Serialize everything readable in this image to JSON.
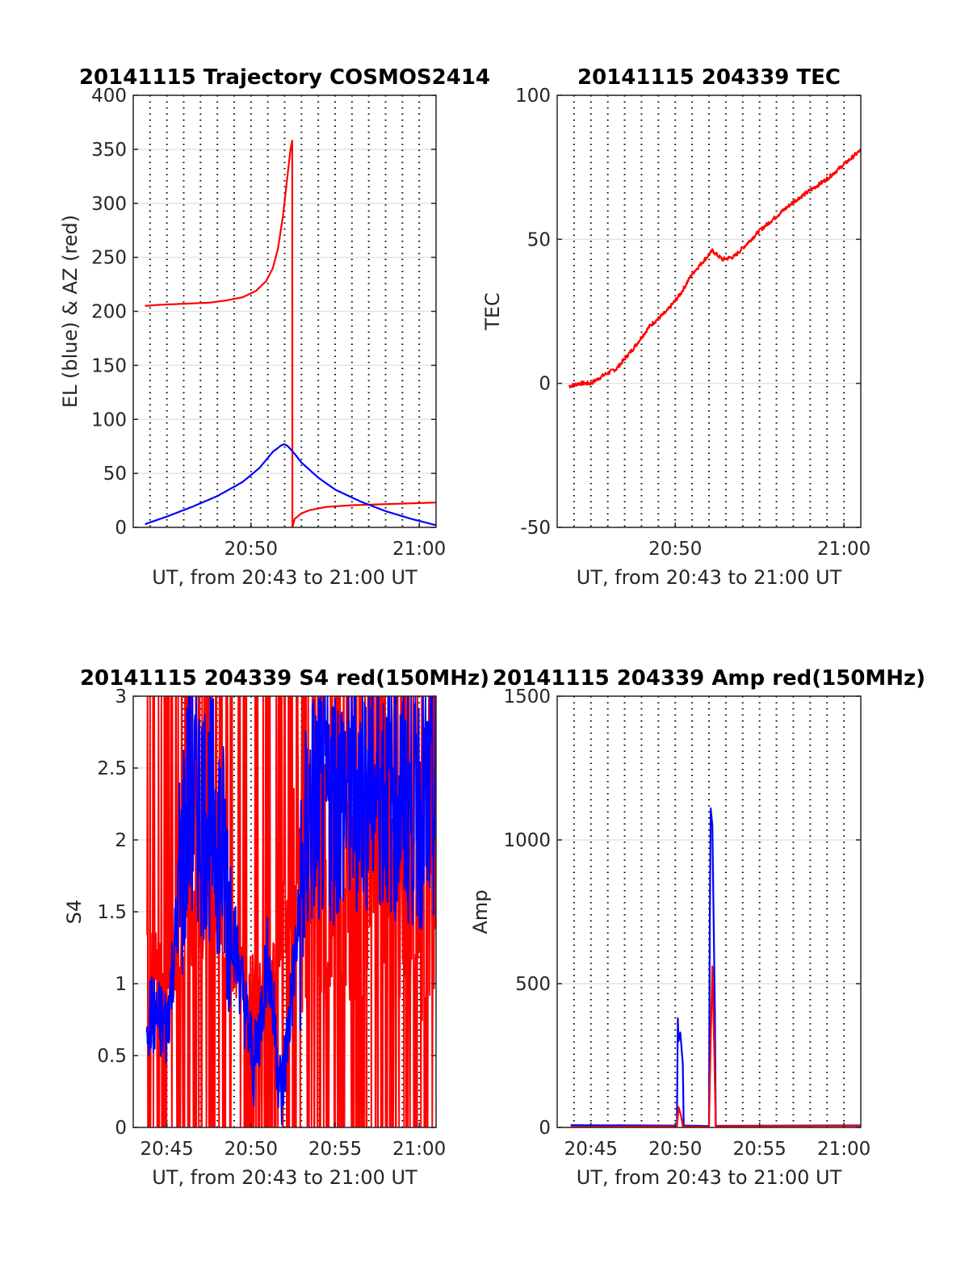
{
  "chart_data": [
    {
      "type": "line",
      "title": "20141115 Trajectory COSMOS2414",
      "xlabel": "UT, from 20:43 to 21:00 UT",
      "ylabel": "EL (blue) & AZ (red)",
      "xlim_minutes": [
        43,
        61
      ],
      "ylim": [
        0,
        400
      ],
      "xticks": [
        "20:50",
        "21:00"
      ],
      "yticks": [
        "0",
        "50",
        "100",
        "150",
        "200",
        "250",
        "300",
        "350",
        "400"
      ],
      "grid": "dotted vertical every 1 min, light horizontal",
      "series": [
        {
          "color": "#ff0000",
          "x": [
            43.7,
            44.5,
            46,
            47.5,
            48.5,
            49.5,
            50.3,
            50.9,
            51.3,
            51.6,
            51.9,
            52.2,
            52.35,
            52.45,
            52.46,
            52.6,
            53,
            53.5,
            54.5,
            56,
            58,
            61
          ],
          "y": [
            205,
            206,
            207,
            208,
            210,
            213,
            219,
            228,
            240,
            258,
            288,
            330,
            350,
            358,
            0,
            8,
            13,
            16,
            19,
            20.5,
            21.5,
            23
          ]
        },
        {
          "color": "#0000ff",
          "x": [
            43.7,
            45,
            46.5,
            48,
            49.5,
            50.5,
            51.3,
            51.8,
            52,
            52.2,
            52.6,
            53,
            54,
            55,
            56.5,
            58,
            59.5,
            61
          ],
          "y": [
            3,
            10,
            19,
            29,
            42,
            55,
            70,
            76,
            77,
            75,
            68,
            60,
            46,
            35,
            24,
            15,
            8,
            2
          ]
        }
      ]
    },
    {
      "type": "line",
      "title": "20141115 204339 TEC",
      "xlabel": "UT, from 20:43 to 21:00 UT",
      "ylabel": "TEC",
      "xlim_minutes": [
        43,
        61
      ],
      "ylim": [
        -50,
        100
      ],
      "xticks": [
        "20:50",
        "21:00"
      ],
      "yticks": [
        "-50",
        "0",
        "50",
        "100"
      ],
      "grid": "dotted vertical every 1 min, light horizontal",
      "series": [
        {
          "color": "#ff0000",
          "x": [
            43.7,
            44.3,
            45,
            45.8,
            46.5,
            47.5,
            48.5,
            49.5,
            50.3,
            51,
            51.6,
            52.2,
            52.8,
            53.5,
            54,
            55,
            56,
            57,
            58,
            59,
            60,
            61
          ],
          "y": [
            -1,
            0,
            0,
            3,
            5,
            12,
            20,
            25,
            31,
            38,
            42,
            46,
            43,
            44,
            47,
            53,
            58,
            63,
            67,
            71,
            76,
            81
          ]
        }
      ]
    },
    {
      "type": "line",
      "title": "20141115 204339 S4 red(150MHz)",
      "xlabel": "UT, from 20:43 to 21:00 UT",
      "ylabel": "S4",
      "xlim_minutes": [
        43,
        61
      ],
      "ylim": [
        0,
        3
      ],
      "xticks": [
        "20:45",
        "20:50",
        "20:55",
        "21:00"
      ],
      "yticks": [
        "0",
        "0.5",
        "1",
        "1.5",
        "2",
        "2.5",
        "3"
      ],
      "grid": "dotted vertical every 1 min, light horizontal",
      "series": [
        {
          "color": "#ff0000",
          "x": [
            43.8,
            45,
            46.3,
            48,
            50.2,
            51,
            51.8,
            53.5,
            55,
            57,
            61
          ],
          "y": [
            1.2,
            1.0,
            1.4,
            1.5,
            0.9,
            1.0,
            1.4,
            1.7,
            1.6,
            1.8,
            1.6
          ]
        },
        {
          "color": "#0000ff",
          "x": [
            43.8,
            45,
            46.3,
            48,
            50.2,
            51,
            51.8,
            53.5,
            55,
            57,
            61
          ],
          "y": [
            0.8,
            0.7,
            2.3,
            2.1,
            0.4,
            1.2,
            0.2,
            2.2,
            2.3,
            2.4,
            2.2
          ]
        }
      ]
    },
    {
      "type": "line",
      "title": "20141115 204339 Amp red(150MHz)",
      "xlabel": "UT, from 20:43 to 21:00 UT",
      "ylabel": "Amp",
      "xlim_minutes": [
        43,
        61
      ],
      "ylim": [
        0,
        1500
      ],
      "xticks": [
        "20:45",
        "20:50",
        "20:55",
        "21:00"
      ],
      "yticks": [
        "0",
        "500",
        "1000",
        "1500"
      ],
      "grid": "dotted vertical every 1 min, light horizontal",
      "series": [
        {
          "color": "#0000ff",
          "x": [
            43.8,
            50.1,
            50.15,
            50.2,
            50.3,
            50.45,
            50.5,
            52,
            52.05,
            52.1,
            52.2,
            52.35,
            52.4,
            61
          ],
          "y": [
            5,
            5,
            380,
            300,
            330,
            220,
            5,
            5,
            700,
            1110,
            1050,
            400,
            5,
            5
          ]
        },
        {
          "color": "#ff0000",
          "x": [
            43.8,
            50.1,
            50.2,
            50.35,
            50.45,
            52,
            52.1,
            52.2,
            52.3,
            52.4,
            61
          ],
          "y": [
            2,
            2,
            70,
            40,
            2,
            2,
            300,
            560,
            300,
            2,
            2
          ]
        }
      ]
    }
  ]
}
